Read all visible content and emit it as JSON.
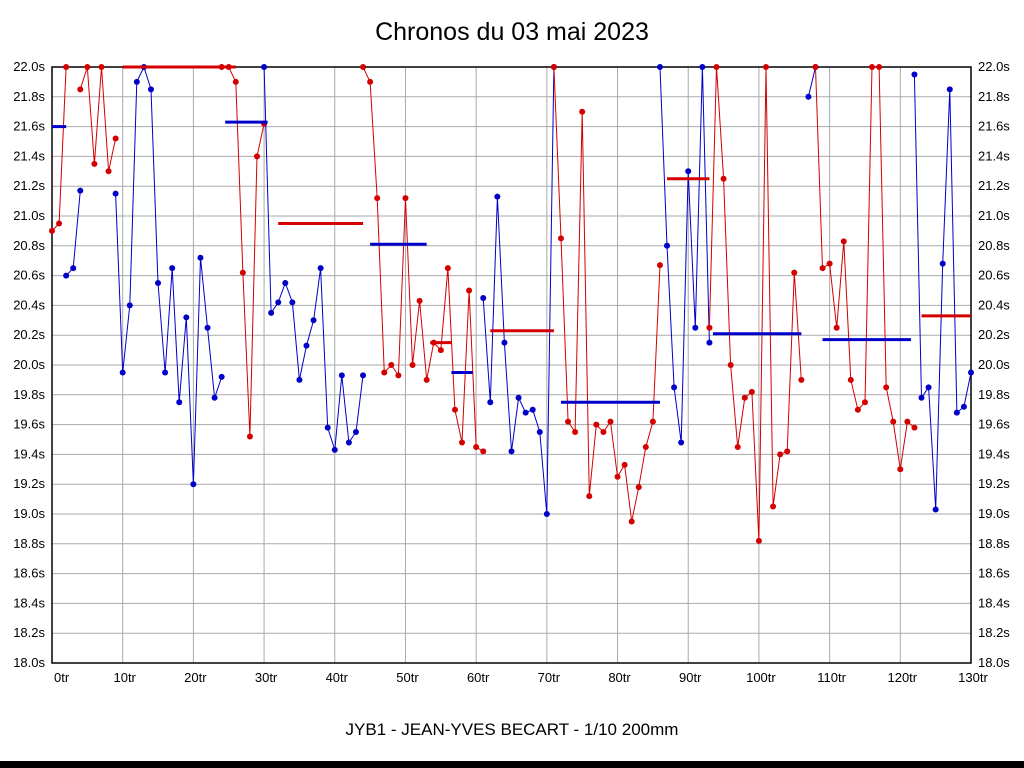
{
  "page": {
    "title": "Chronos du 03 mai 2023",
    "footer": "JYB1 - JEAN-YVES BECART - 1/10 200mm"
  },
  "chart_data": {
    "type": "line",
    "title": "Chronos du 03 mai 2023",
    "caption": "JYB1 - JEAN-YVES BECART - 1/10 200mm",
    "x_max": 130,
    "x_tick_step": 10,
    "x_tick_suffix": "tr",
    "ylim": [
      18.0,
      22.0
    ],
    "y_step": 0.2,
    "y_suffix": "s",
    "grid": true,
    "legend": "none",
    "colors": {
      "red": "#d40000",
      "blue": "#0000c8",
      "grid": "#aaaaaa",
      "axis": "#000000"
    },
    "units": "lap time in seconds, clipped at 22.0s; x axis in laps (tours)",
    "stints": [
      {
        "color": "red",
        "start_lap": 0,
        "values": [
          20.9,
          20.95,
          22.0
        ]
      },
      {
        "color": "blue",
        "start_lap": 2,
        "values": [
          20.6,
          20.65,
          21.17
        ]
      },
      {
        "color": "red",
        "start_lap": 4,
        "values": [
          21.85,
          22.0,
          21.35,
          22.0,
          21.3,
          21.52
        ]
      },
      {
        "color": "blue",
        "start_lap": 9,
        "values": [
          21.15,
          19.95,
          20.4,
          21.9,
          22.0,
          21.85,
          20.55,
          19.95,
          20.65,
          19.75,
          20.32,
          19.2,
          20.72,
          20.25,
          19.78,
          19.92
        ]
      },
      {
        "color": "red",
        "start_lap": 24,
        "values": [
          22.0,
          22.0,
          21.9,
          20.62,
          19.52,
          21.4,
          21.62
        ]
      },
      {
        "color": "blue",
        "start_lap": 30,
        "values": [
          22.0,
          20.35,
          20.42,
          20.55,
          20.42,
          19.9,
          20.13,
          20.3,
          20.65,
          19.58,
          19.43,
          19.93,
          19.48,
          19.55,
          19.93
        ]
      },
      {
        "color": "red",
        "start_lap": 44,
        "values": [
          22.0,
          21.9,
          21.12,
          19.95,
          20.0,
          19.93,
          21.12,
          20.0,
          20.43,
          19.9,
          20.15,
          20.1,
          20.65,
          19.7,
          19.48,
          20.5,
          19.45,
          19.42
        ]
      },
      {
        "color": "blue",
        "start_lap": 61,
        "values": [
          20.45,
          19.75,
          21.13,
          20.15,
          19.42,
          19.78,
          19.68,
          19.7,
          19.55,
          19.0,
          22.0
        ]
      },
      {
        "color": "red",
        "start_lap": 71,
        "values": [
          22.0,
          20.85,
          19.62,
          19.55,
          21.7,
          19.12,
          19.6,
          19.55,
          19.62,
          19.25,
          19.33,
          18.95,
          19.18,
          19.45,
          19.62,
          20.67
        ]
      },
      {
        "color": "blue",
        "start_lap": 86,
        "values": [
          22.0,
          20.8,
          19.85,
          19.48,
          21.3,
          20.25,
          22.0,
          20.15
        ]
      },
      {
        "color": "red",
        "start_lap": 93,
        "values": [
          20.25,
          22.0,
          21.25,
          20.0,
          19.45,
          19.78,
          19.82,
          18.82,
          22.0,
          19.05,
          19.4,
          19.42,
          20.62,
          19.9
        ]
      },
      {
        "color": "blue",
        "start_lap": 107,
        "values": [
          21.8,
          22.0
        ]
      },
      {
        "color": "red",
        "start_lap": 108,
        "values": [
          22.0,
          20.65,
          20.68,
          20.25,
          20.83,
          19.9,
          19.7,
          19.75,
          22.0,
          22.0,
          19.85,
          19.62,
          19.3,
          19.62,
          19.58
        ]
      },
      {
        "color": "blue",
        "start_lap": 122,
        "values": [
          21.95,
          19.78,
          19.85,
          19.03,
          20.68,
          21.85,
          19.68,
          19.72,
          19.95
        ]
      }
    ],
    "mean_lines": [
      {
        "color": "blue",
        "from_lap": 0,
        "to_lap": 2,
        "value": 21.6
      },
      {
        "color": "red",
        "from_lap": 10,
        "to_lap": 26,
        "value": 22.0
      },
      {
        "color": "blue",
        "from_lap": 24.5,
        "to_lap": 30.5,
        "value": 21.63
      },
      {
        "color": "red",
        "from_lap": 32,
        "to_lap": 44,
        "value": 20.95
      },
      {
        "color": "blue",
        "from_lap": 45,
        "to_lap": 53,
        "value": 20.81
      },
      {
        "color": "red",
        "from_lap": 53.5,
        "to_lap": 56.5,
        "value": 20.15
      },
      {
        "color": "blue",
        "from_lap": 56.5,
        "to_lap": 59.5,
        "value": 19.95
      },
      {
        "color": "red",
        "from_lap": 62,
        "to_lap": 71,
        "value": 20.23
      },
      {
        "color": "blue",
        "from_lap": 72,
        "to_lap": 86,
        "value": 19.75
      },
      {
        "color": "red",
        "from_lap": 87,
        "to_lap": 93,
        "value": 21.25
      },
      {
        "color": "blue",
        "from_lap": 93.5,
        "to_lap": 106,
        "value": 20.21
      },
      {
        "color": "blue",
        "from_lap": 109,
        "to_lap": 121.5,
        "value": 20.17
      },
      {
        "color": "red",
        "from_lap": 123,
        "to_lap": 130,
        "value": 20.33
      }
    ]
  }
}
